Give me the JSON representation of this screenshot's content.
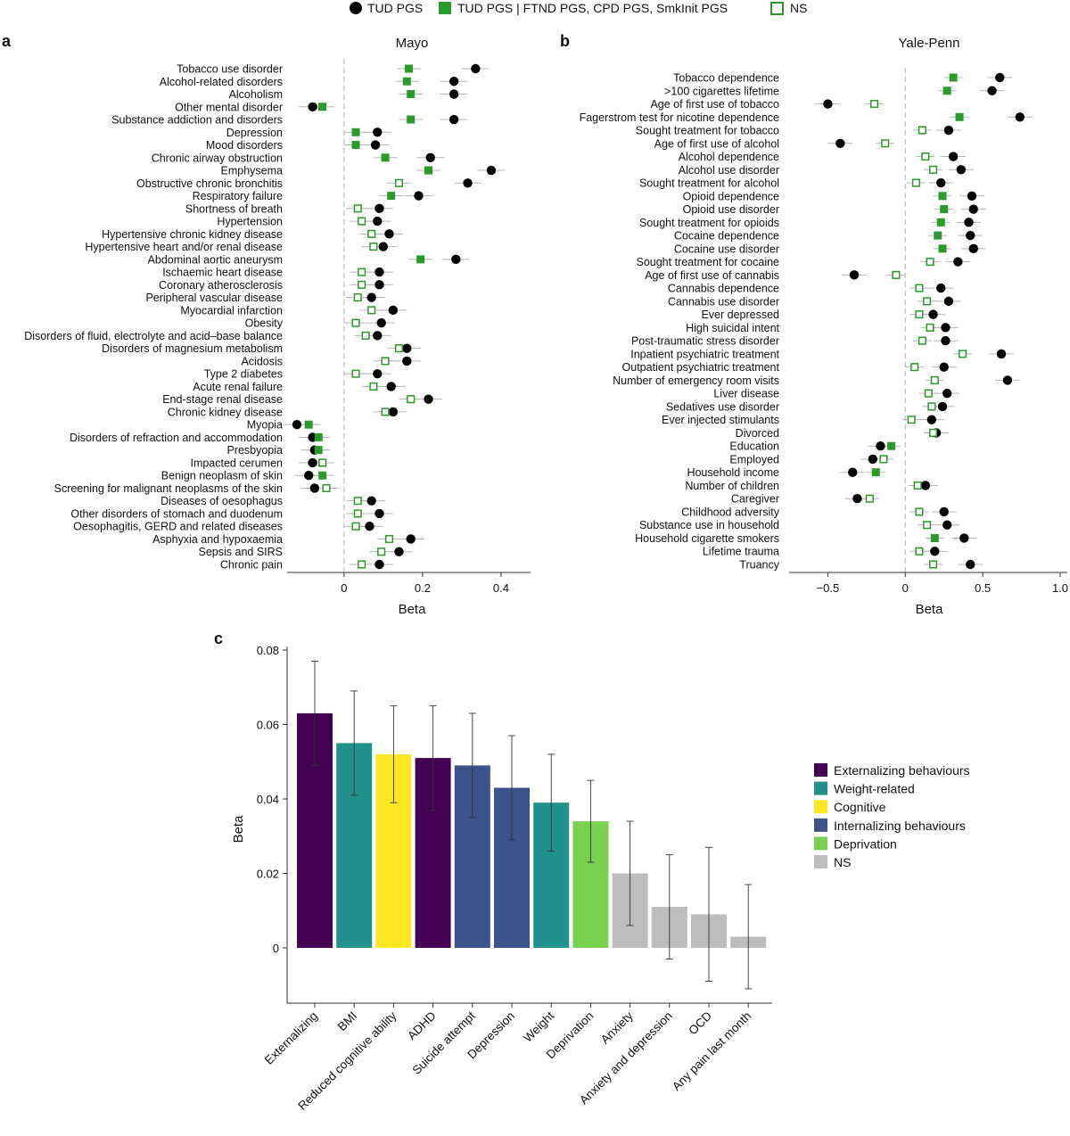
{
  "legend_top": {
    "items": [
      {
        "label": "TUD PGS",
        "marker": "filled-circle",
        "color": "#000000"
      },
      {
        "label": "TUD PGS | FTND PGS, CPD PGS, SmkInit PGS",
        "marker": "filled-square",
        "color": "#2a9a2a"
      },
      {
        "label": "NS",
        "marker": "open-square",
        "color": "#2a9a2a"
      }
    ]
  },
  "panel_labels": {
    "a": "a",
    "b": "b",
    "c": "c"
  },
  "colors": {
    "circle": "#000000",
    "green": "#2a9a2a",
    "errorbar": "#b5b5b5",
    "zeroline": "#bdbdbd"
  },
  "chart_data": [
    {
      "panel": "a",
      "type": "scatter",
      "title": "Mayo",
      "xlabel": "Beta",
      "xlim": [
        -0.145,
        0.475
      ],
      "xticks": [
        0,
        0.2,
        0.4
      ],
      "xtick_labels": [
        "0",
        "0.2",
        "0.4"
      ],
      "zero_line": true,
      "rows": [
        {
          "label": "Tobacco use disorder",
          "circle": 0.335,
          "square": 0.165,
          "sq_type": "filled"
        },
        {
          "label": "Alcohol-related disorders",
          "circle": 0.28,
          "square": 0.16,
          "sq_type": "filled"
        },
        {
          "label": "Alcoholism",
          "circle": 0.28,
          "square": 0.17,
          "sq_type": "filled"
        },
        {
          "label": "Other mental disorder",
          "circle": -0.08,
          "square": -0.055,
          "sq_type": "filled"
        },
        {
          "label": "Substance addiction and disorders",
          "circle": 0.28,
          "square": 0.17,
          "sq_type": "filled"
        },
        {
          "label": "Depression",
          "circle": 0.085,
          "square": 0.03,
          "sq_type": "filled"
        },
        {
          "label": "Mood disorders",
          "circle": 0.08,
          "square": 0.03,
          "sq_type": "filled"
        },
        {
          "label": "Chronic airway obstruction",
          "circle": 0.22,
          "square": 0.105,
          "sq_type": "filled"
        },
        {
          "label": "Emphysema",
          "circle": 0.375,
          "square": 0.215,
          "sq_type": "filled"
        },
        {
          "label": "Obstructive chronic bronchitis",
          "circle": 0.315,
          "square": 0.14,
          "sq_type": "open"
        },
        {
          "label": "Respiratory failure",
          "circle": 0.19,
          "square": 0.12,
          "sq_type": "filled"
        },
        {
          "label": "Shortness of breath",
          "circle": 0.09,
          "square": 0.035,
          "sq_type": "open"
        },
        {
          "label": "Hypertension",
          "circle": 0.085,
          "square": 0.045,
          "sq_type": "open"
        },
        {
          "label": "Hypertensive chronic kidney disease",
          "circle": 0.115,
          "square": 0.07,
          "sq_type": "open"
        },
        {
          "label": "Hypertensive heart and/or renal disease",
          "circle": 0.1,
          "square": 0.075,
          "sq_type": "open"
        },
        {
          "label": "Abdominal aortic aneurysm",
          "circle": 0.285,
          "square": 0.195,
          "sq_type": "filled"
        },
        {
          "label": "Ischaemic heart disease",
          "circle": 0.09,
          "square": 0.045,
          "sq_type": "open"
        },
        {
          "label": "Coronary atherosclerosis",
          "circle": 0.09,
          "square": 0.045,
          "sq_type": "open"
        },
        {
          "label": "Peripheral vascular disease",
          "circle": 0.07,
          "square": 0.035,
          "sq_type": "open"
        },
        {
          "label": "Myocardial infarction",
          "circle": 0.125,
          "square": 0.07,
          "sq_type": "open"
        },
        {
          "label": "Obesity",
          "circle": 0.095,
          "square": 0.03,
          "sq_type": "open"
        },
        {
          "label": "Disorders of fluid, electrolyte and acid–base balance",
          "circle": 0.085,
          "square": 0.055,
          "sq_type": "open"
        },
        {
          "label": "Disorders of magnesium metabolism",
          "circle": 0.16,
          "square": 0.14,
          "sq_type": "open"
        },
        {
          "label": "Acidosis",
          "circle": 0.16,
          "square": 0.105,
          "sq_type": "open"
        },
        {
          "label": "Type 2 diabetes",
          "circle": 0.085,
          "square": 0.03,
          "sq_type": "open"
        },
        {
          "label": "Acute renal failure",
          "circle": 0.12,
          "square": 0.075,
          "sq_type": "open"
        },
        {
          "label": "End-stage renal disease",
          "circle": 0.215,
          "square": 0.17,
          "sq_type": "open"
        },
        {
          "label": "Chronic kidney disease",
          "circle": 0.125,
          "square": 0.105,
          "sq_type": "open"
        },
        {
          "label": "Myopia",
          "circle": -0.12,
          "square": -0.09,
          "sq_type": "filled"
        },
        {
          "label": "Disorders of refraction and accommodation",
          "circle": -0.08,
          "square": -0.065,
          "sq_type": "filled"
        },
        {
          "label": "Presbyopia",
          "circle": -0.075,
          "square": -0.065,
          "sq_type": "filled"
        },
        {
          "label": "Impacted cerumen",
          "circle": -0.08,
          "square": -0.055,
          "sq_type": "open"
        },
        {
          "label": "Benign neoplasm of skin",
          "circle": -0.09,
          "square": -0.055,
          "sq_type": "filled"
        },
        {
          "label": "Screening for malignant neoplasms of the skin",
          "circle": -0.075,
          "square": -0.045,
          "sq_type": "open"
        },
        {
          "label": "Diseases of oesophagus",
          "circle": 0.07,
          "square": 0.035,
          "sq_type": "open"
        },
        {
          "label": "Other disorders of stomach and duodenum",
          "circle": 0.09,
          "square": 0.035,
          "sq_type": "open"
        },
        {
          "label": "Oesophagitis, GERD and related diseases",
          "circle": 0.065,
          "square": 0.03,
          "sq_type": "open"
        },
        {
          "label": "Asphyxia and hypoxaemia",
          "circle": 0.17,
          "square": 0.115,
          "sq_type": "open"
        },
        {
          "label": "Sepsis and SIRS",
          "circle": 0.14,
          "square": 0.095,
          "sq_type": "open"
        },
        {
          "label": "Chronic pain",
          "circle": 0.09,
          "square": 0.045,
          "sq_type": "open"
        }
      ]
    },
    {
      "panel": "b",
      "type": "scatter",
      "title": "Yale-Penn",
      "xlabel": "Beta",
      "xlim": [
        -0.75,
        1.0
      ],
      "xticks": [
        -0.5,
        0,
        0.5,
        1.0
      ],
      "xtick_labels": [
        "−0.5",
        "0",
        "0.5",
        "1.0"
      ],
      "zero_line": true,
      "rows": [
        {
          "label": "Tobacco dependence",
          "circle": 0.61,
          "square": 0.31,
          "sq_type": "filled"
        },
        {
          "label": ">100 cigarettes lifetime",
          "circle": 0.56,
          "square": 0.27,
          "sq_type": "filled"
        },
        {
          "label": "Age of first use of tobacco",
          "circle": -0.5,
          "square": -0.2,
          "sq_type": "open"
        },
        {
          "label": "Fagerstrom test for nicotine dependence",
          "circle": 0.74,
          "square": 0.35,
          "sq_type": "filled"
        },
        {
          "label": "Sought treatment for tobacco",
          "circle": 0.28,
          "square": 0.11,
          "sq_type": "open"
        },
        {
          "label": "Age of first use of alcohol",
          "circle": -0.42,
          "square": -0.13,
          "sq_type": "open"
        },
        {
          "label": "Alcohol dependence",
          "circle": 0.31,
          "square": 0.13,
          "sq_type": "open"
        },
        {
          "label": "Alcohol use disorder",
          "circle": 0.36,
          "square": 0.18,
          "sq_type": "open"
        },
        {
          "label": "Sought treatment for alcohol",
          "circle": 0.23,
          "square": 0.07,
          "sq_type": "open"
        },
        {
          "label": "Opioid dependence",
          "circle": 0.43,
          "square": 0.24,
          "sq_type": "filled"
        },
        {
          "label": "Opioid use disorder",
          "circle": 0.44,
          "square": 0.25,
          "sq_type": "filled"
        },
        {
          "label": "Sought treatment for opioids",
          "circle": 0.41,
          "square": 0.23,
          "sq_type": "filled"
        },
        {
          "label": "Cocaine dependence",
          "circle": 0.42,
          "square": 0.21,
          "sq_type": "filled"
        },
        {
          "label": "Cocaine use disorder",
          "circle": 0.44,
          "square": 0.24,
          "sq_type": "filled"
        },
        {
          "label": "Sought treatment for cocaine",
          "circle": 0.34,
          "square": 0.16,
          "sq_type": "open"
        },
        {
          "label": "Age of first use of cannabis",
          "circle": -0.33,
          "square": -0.06,
          "sq_type": "open"
        },
        {
          "label": "Cannabis dependence",
          "circle": 0.23,
          "square": 0.09,
          "sq_type": "open"
        },
        {
          "label": "Cannabis use disorder",
          "circle": 0.28,
          "square": 0.14,
          "sq_type": "open"
        },
        {
          "label": "Ever depressed",
          "circle": 0.18,
          "square": 0.09,
          "sq_type": "open"
        },
        {
          "label": "High suicidal intent",
          "circle": 0.26,
          "square": 0.16,
          "sq_type": "open"
        },
        {
          "label": "Post-traumatic stress disorder",
          "circle": 0.26,
          "square": 0.11,
          "sq_type": "open"
        },
        {
          "label": "Inpatient psychiatric treatment",
          "circle": 0.62,
          "square": 0.37,
          "sq_type": "open"
        },
        {
          "label": "Outpatient psychiatric treatment",
          "circle": 0.25,
          "square": 0.06,
          "sq_type": "open"
        },
        {
          "label": "Number of emergency room visits",
          "circle": 0.66,
          "square": 0.19,
          "sq_type": "open"
        },
        {
          "label": "Liver disease",
          "circle": 0.27,
          "square": 0.15,
          "sq_type": "open"
        },
        {
          "label": "Sedatives use disorder",
          "circle": 0.24,
          "square": 0.17,
          "sq_type": "open"
        },
        {
          "label": "Ever injected stimulants",
          "circle": 0.17,
          "square": 0.04,
          "sq_type": "open"
        },
        {
          "label": "Divorced",
          "circle": 0.2,
          "square": 0.18,
          "sq_type": "open"
        },
        {
          "label": "Education",
          "circle": -0.16,
          "square": -0.09,
          "sq_type": "filled"
        },
        {
          "label": "Employed",
          "circle": -0.21,
          "square": -0.14,
          "sq_type": "open"
        },
        {
          "label": "Household income",
          "circle": -0.34,
          "square": -0.19,
          "sq_type": "filled"
        },
        {
          "label": "Number of children",
          "circle": 0.13,
          "square": 0.08,
          "sq_type": "open"
        },
        {
          "label": "Caregiver",
          "circle": -0.31,
          "square": -0.23,
          "sq_type": "open"
        },
        {
          "label": "Childhood adversity",
          "circle": 0.25,
          "square": 0.09,
          "sq_type": "open"
        },
        {
          "label": "Substance use in household",
          "circle": 0.27,
          "square": 0.14,
          "sq_type": "open"
        },
        {
          "label": "Household cigarette smokers",
          "circle": 0.38,
          "square": 0.19,
          "sq_type": "filled"
        },
        {
          "label": "Lifetime trauma",
          "circle": 0.19,
          "square": 0.09,
          "sq_type": "open"
        },
        {
          "label": "Truancy",
          "circle": 0.42,
          "square": 0.18,
          "sq_type": "open"
        }
      ]
    },
    {
      "panel": "c",
      "type": "bar",
      "title": "",
      "xlabel": "",
      "ylabel": "Beta",
      "ylim": [
        -0.012,
        0.08
      ],
      "yticks": [
        0,
        0.02,
        0.04,
        0.06,
        0.08
      ],
      "ytick_labels": [
        "0",
        "0.02",
        "0.04",
        "0.06",
        "0.08"
      ],
      "categories": [
        "Externalizing",
        "BMI",
        "Reduced cognitive ability",
        "ADHD",
        "Suicide attempt",
        "Depression",
        "Weight",
        "Deprivation",
        "Anxiety",
        "Anxiety and depression",
        "OCD",
        "Any pain last month"
      ],
      "values": [
        0.063,
        0.055,
        0.052,
        0.051,
        0.049,
        0.043,
        0.039,
        0.034,
        0.02,
        0.011,
        0.009,
        0.003
      ],
      "err_low": [
        0.049,
        0.041,
        0.039,
        0.037,
        0.035,
        0.029,
        0.026,
        0.023,
        0.006,
        -0.003,
        -0.009,
        -0.011
      ],
      "err_high": [
        0.077,
        0.069,
        0.065,
        0.065,
        0.063,
        0.057,
        0.052,
        0.045,
        0.034,
        0.025,
        0.027,
        0.017
      ],
      "groups": [
        "Externalizing behaviours",
        "Weight-related",
        "Cognitive",
        "Externalizing behaviours",
        "Internalizing behaviours",
        "Internalizing behaviours",
        "Weight-related",
        "Deprivation",
        "NS",
        "NS",
        "NS",
        "NS"
      ],
      "legend": [
        {
          "label": "Externalizing behaviours",
          "color": "#440154"
        },
        {
          "label": "Weight-related",
          "color": "#21918c"
        },
        {
          "label": "Cognitive",
          "color": "#fde725"
        },
        {
          "label": "Internalizing behaviours",
          "color": "#3b528b"
        },
        {
          "label": "Deprivation",
          "color": "#7ad151"
        },
        {
          "label": "NS",
          "color": "#bdbdbd"
        }
      ]
    }
  ]
}
